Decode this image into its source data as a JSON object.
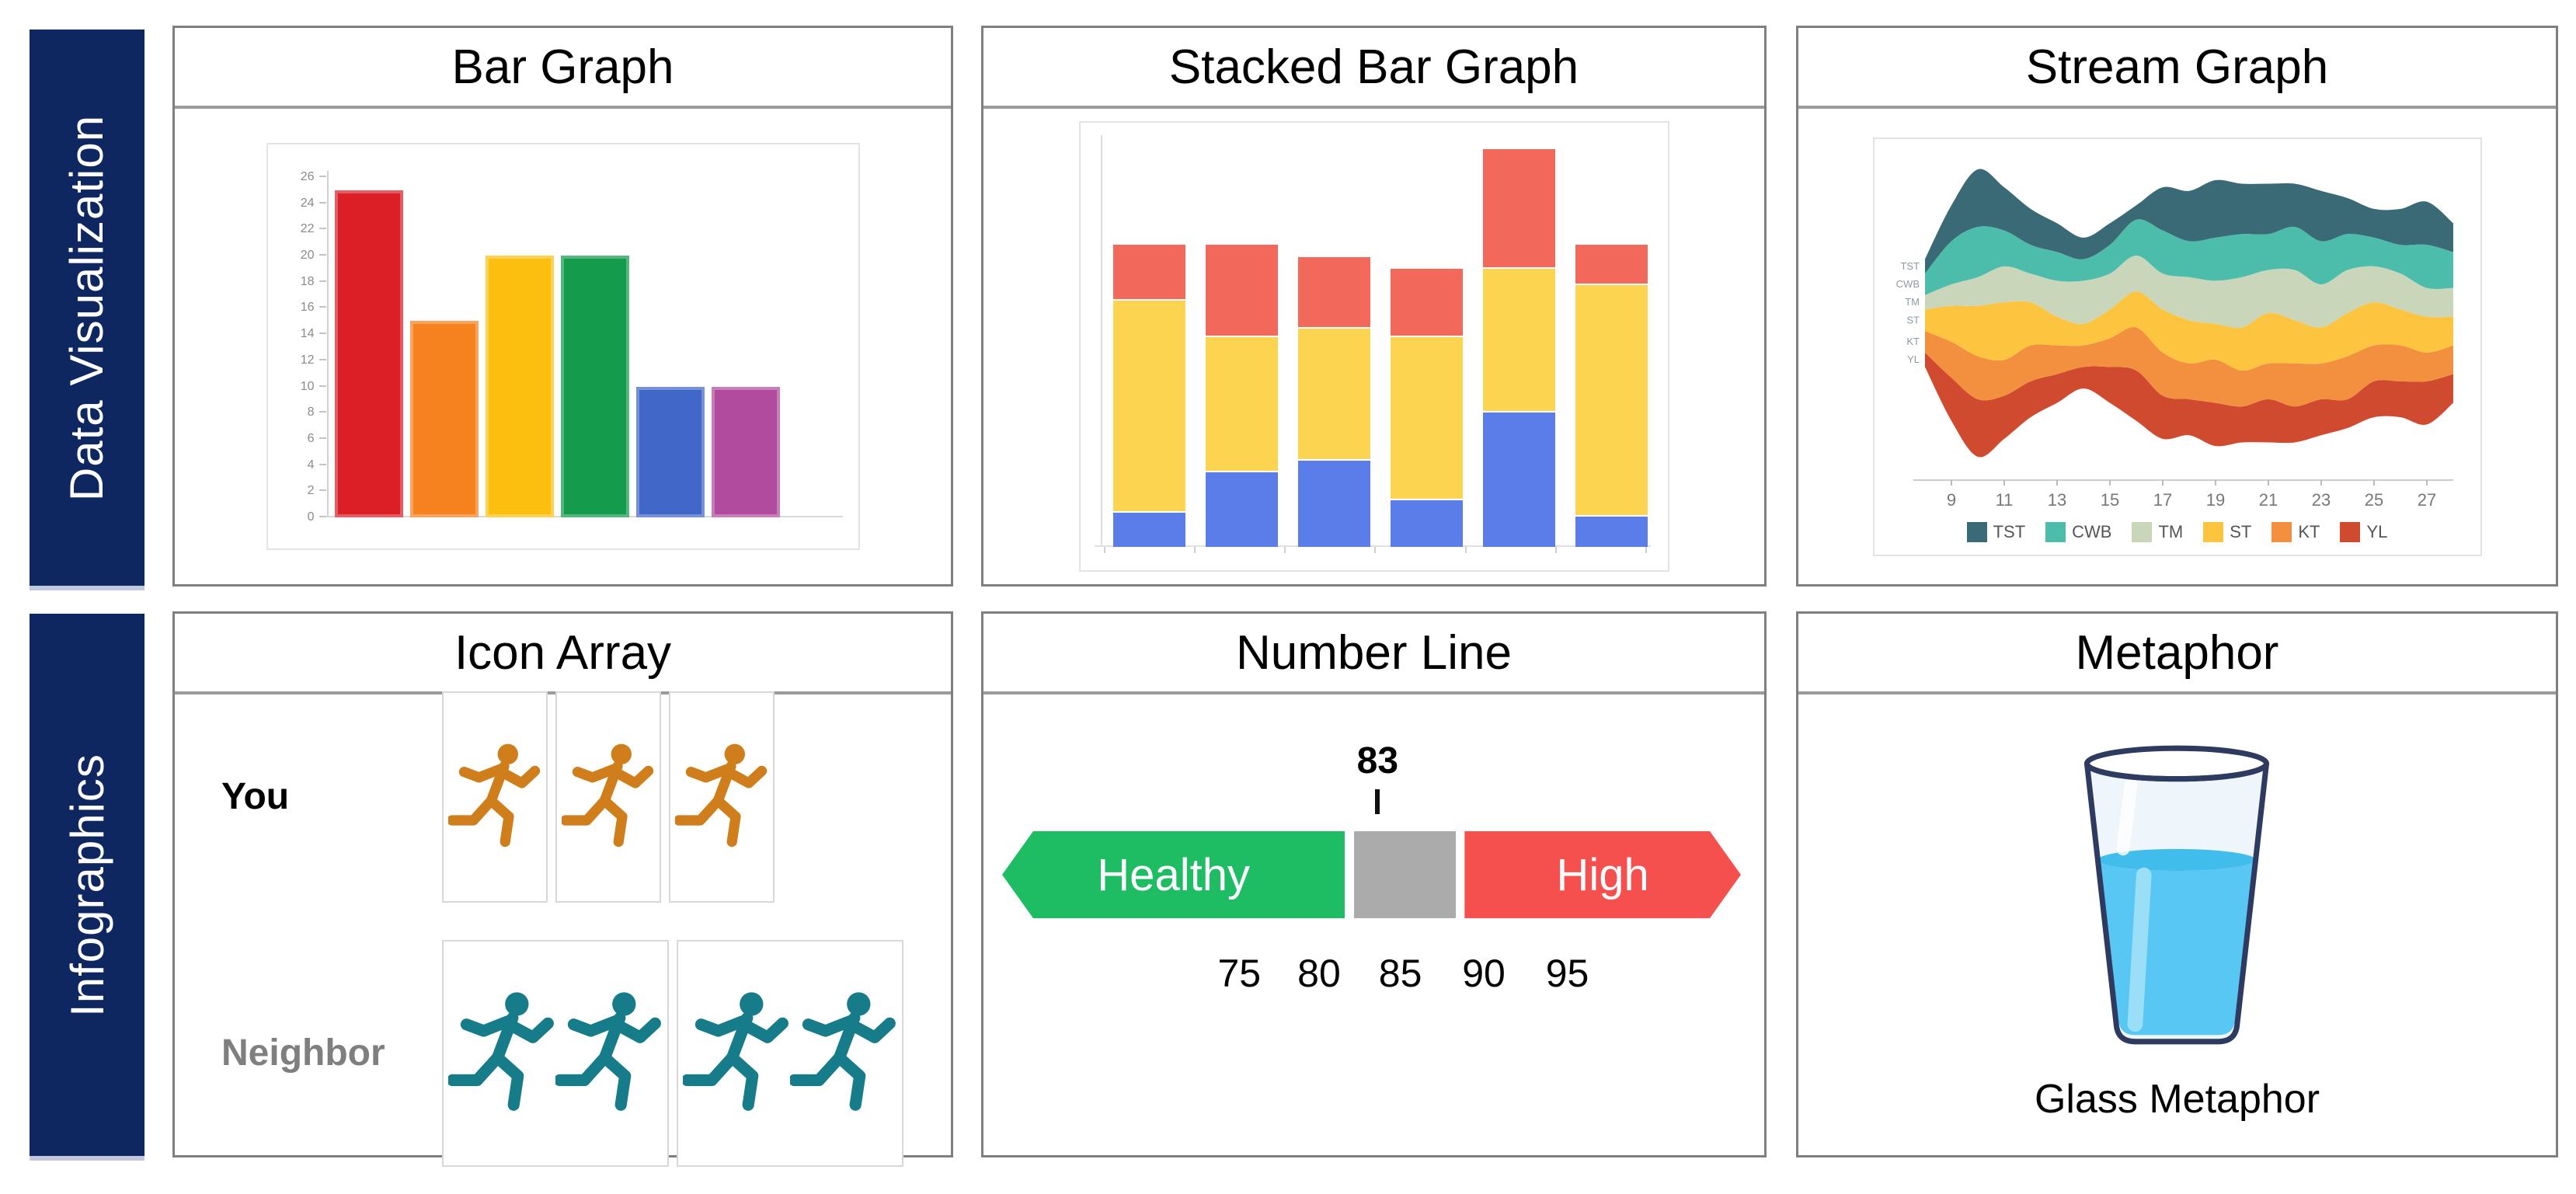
{
  "sidebar": {
    "row1_label": "Data Visualization",
    "row2_label": "Infographics",
    "bg_color": "#0e2760",
    "text_color": "#ffffff"
  },
  "panels": [
    {
      "id": "bar-graph",
      "title": "Bar Graph"
    },
    {
      "id": "stacked-bar-graph",
      "title": "Stacked Bar Graph"
    },
    {
      "id": "stream-graph",
      "title": "Stream Graph"
    },
    {
      "id": "icon-array",
      "title": "Icon Array"
    },
    {
      "id": "number-line",
      "title": "Number Line"
    },
    {
      "id": "metaphor",
      "title": "Metaphor"
    }
  ],
  "chart_data": [
    {
      "id": "bar-graph",
      "type": "bar",
      "title": "Bar Graph",
      "categories": [
        "",
        "",
        "",
        "",
        "",
        ""
      ],
      "values": [
        25,
        15,
        20,
        20,
        10,
        10
      ],
      "colors": [
        "#dc1f26",
        "#f5821f",
        "#fcbf10",
        "#149c4c",
        "#4168c9",
        "#b04b9d"
      ],
      "xlabel": "",
      "ylabel": "",
      "ylim": [
        0,
        26
      ],
      "ytick_step": 2,
      "grid": false,
      "axis_color": "#d2d2d2",
      "tick_label_color": "#8a8a8a"
    },
    {
      "id": "stacked-bar-graph",
      "type": "bar",
      "stacked": true,
      "title": "Stacked Bar Graph",
      "categories": [
        "",
        "",
        "",
        "",
        "",
        ""
      ],
      "series": [
        {
          "name": "blue",
          "color": "#5b7de9",
          "values": [
            9,
            19,
            22,
            12,
            34,
            8
          ]
        },
        {
          "name": "yellow",
          "color": "#fdd44f",
          "values": [
            53,
            34,
            33,
            41,
            36,
            58
          ]
        },
        {
          "name": "red",
          "color": "#f2685a",
          "values": [
            14,
            23,
            18,
            17,
            30,
            10
          ]
        }
      ],
      "xlabel": "",
      "ylabel": "",
      "ylim": [
        0,
        100
      ],
      "grid": false,
      "legend": "none"
    },
    {
      "id": "stream-graph",
      "type": "area",
      "variant": "streamgraph",
      "title": "Stream Graph",
      "x": [
        8,
        9,
        10,
        11,
        12,
        13,
        14,
        15,
        16,
        17,
        18,
        19,
        20,
        21,
        22,
        23,
        24,
        25,
        26,
        27,
        28
      ],
      "xticks": [
        "9",
        "11",
        "13",
        "15",
        "17",
        "19",
        "21",
        "23",
        "25",
        "27"
      ],
      "series": [
        {
          "name": "TST",
          "color": "#3a6a76",
          "values": [
            2,
            5,
            8,
            6,
            5,
            4,
            3,
            3,
            2,
            6,
            7,
            8,
            7,
            7,
            6,
            7,
            5,
            4,
            5,
            6,
            4
          ]
        },
        {
          "name": "CWB",
          "color": "#4cbcab",
          "values": [
            3,
            6,
            7,
            5,
            4,
            4,
            3,
            4,
            5,
            6,
            5,
            6,
            6,
            5,
            6,
            6,
            5,
            4,
            4,
            6,
            5
          ]
        },
        {
          "name": "TM",
          "color": "#c9d6b9",
          "values": [
            2,
            3,
            4,
            5,
            4,
            5,
            6,
            5,
            5,
            5,
            6,
            6,
            7,
            6,
            7,
            6,
            6,
            5,
            5,
            4,
            4
          ]
        },
        {
          "name": "ST",
          "color": "#fdc440",
          "values": [
            3,
            5,
            7,
            8,
            6,
            4,
            3,
            4,
            5,
            6,
            6,
            5,
            6,
            7,
            6,
            5,
            6,
            6,
            5,
            5,
            4
          ]
        },
        {
          "name": "KT",
          "color": "#f29040",
          "values": [
            3,
            5,
            6,
            5,
            5,
            4,
            3,
            4,
            6,
            6,
            5,
            6,
            5,
            5,
            6,
            5,
            6,
            5,
            5,
            4,
            4
          ]
        },
        {
          "name": "YL",
          "color": "#d04a2f",
          "values": [
            2,
            6,
            8,
            6,
            5,
            4,
            3,
            5,
            7,
            6,
            5,
            6,
            5,
            6,
            5,
            5,
            4,
            5,
            5,
            6,
            4
          ]
        }
      ],
      "legend_position": "bottom",
      "axis_label_color": "#777777"
    }
  ],
  "icon_array": {
    "rows": [
      {
        "label": "You",
        "label_color": "#000000",
        "icon": "runner-icon",
        "icon_color": "#cf7e1b",
        "count": 3,
        "groups": [
          1,
          1,
          1
        ]
      },
      {
        "label": "Neighbor",
        "label_color": "#7f7f7f",
        "icon": "runner-icon",
        "icon_color": "#177c8a",
        "count": 4,
        "groups": [
          2,
          2
        ]
      }
    ]
  },
  "number_line": {
    "marker_value": "83",
    "segments": [
      {
        "label": "Healthy",
        "color": "#1fbd63"
      },
      {
        "label": "",
        "color": "#ababab"
      },
      {
        "label": "High",
        "color": "#f5504e"
      }
    ],
    "ticks": [
      "75",
      "80",
      "85",
      "90",
      "95"
    ],
    "tick_positions_pct": [
      32.1,
      42.9,
      53.9,
      65.2,
      76.5
    ]
  },
  "metaphor": {
    "caption": "Glass Metaphor",
    "water_color": "#58c7f3",
    "surface_color": "#41bdec",
    "glass_color": "#eef6fb",
    "outline_color": "#2e3a5f"
  }
}
